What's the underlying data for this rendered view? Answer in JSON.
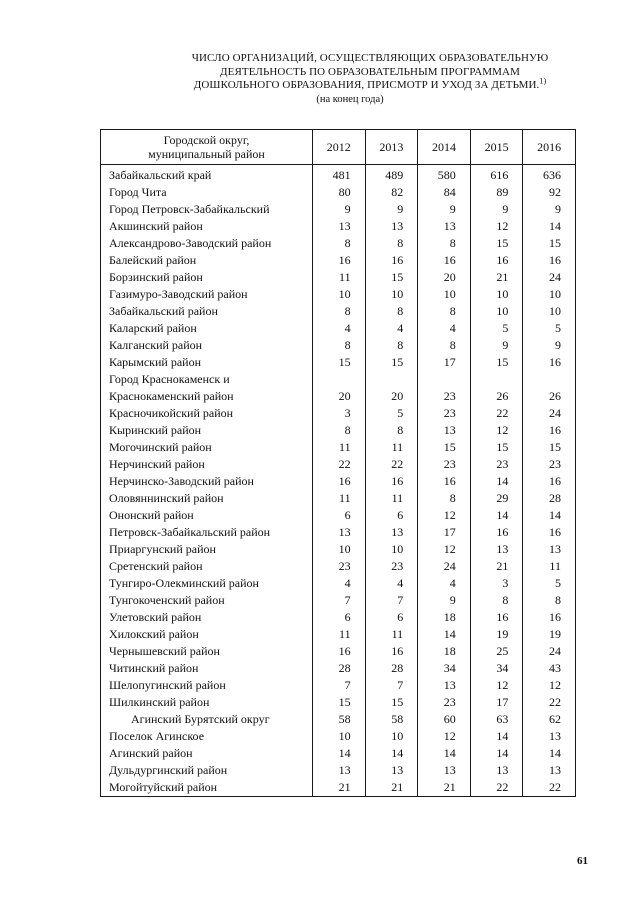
{
  "page": {
    "title_lines": [
      "ЧИСЛО ОРГАНИЗАЦИЙ, ОСУЩЕСТВЛЯЮЩИХ ОБРАЗОВАТЕЛЬНУЮ",
      "ДЕЯТЕЛЬНОСТЬ ПО ОБРАЗОВАТЕЛЬНЫМ ПРОГРАММАМ",
      "ДОШКОЛЬНОГО ОБРАЗОВАНИЯ, ПРИСМОТР И УХОД ЗА ДЕТЬМИ."
    ],
    "title_superscript": "1)",
    "subtitle": "(на конец года)",
    "page_number": "61"
  },
  "table": {
    "header": {
      "label_line1": "Городской округ,",
      "label_line2": "муниципальный район",
      "years": [
        "2012",
        "2013",
        "2014",
        "2015",
        "2016"
      ]
    },
    "rows": [
      {
        "label": "Забайкальский край",
        "indent": false,
        "values": [
          "481",
          "489",
          "580",
          "616",
          "636"
        ]
      },
      {
        "label": "Город Чита",
        "indent": false,
        "values": [
          "80",
          "82",
          "84",
          "89",
          "92"
        ]
      },
      {
        "label": "Город Петровск-Забайкальский",
        "indent": false,
        "values": [
          "9",
          "9",
          "9",
          "9",
          "9"
        ]
      },
      {
        "label": "Акшинский район",
        "indent": false,
        "values": [
          "13",
          "13",
          "13",
          "12",
          "14"
        ]
      },
      {
        "label": "Александрово-Заводский район",
        "indent": false,
        "values": [
          "8",
          "8",
          "8",
          "15",
          "15"
        ]
      },
      {
        "label": "Балейский район",
        "indent": false,
        "values": [
          "16",
          "16",
          "16",
          "16",
          "16"
        ]
      },
      {
        "label": "Борзинский район",
        "indent": false,
        "values": [
          "11",
          "15",
          "20",
          "21",
          "24"
        ]
      },
      {
        "label": "Газимуро-Заводский район",
        "indent": false,
        "values": [
          "10",
          "10",
          "10",
          "10",
          "10"
        ]
      },
      {
        "label": "Забайкальский район",
        "indent": false,
        "values": [
          "8",
          "8",
          "8",
          "10",
          "10"
        ]
      },
      {
        "label": "Каларский район",
        "indent": false,
        "values": [
          "4",
          "4",
          "4",
          "5",
          "5"
        ]
      },
      {
        "label": "Калганский район",
        "indent": false,
        "values": [
          "8",
          "8",
          "8",
          "9",
          "9"
        ]
      },
      {
        "label": "Карымский район",
        "indent": false,
        "values": [
          "15",
          "15",
          "17",
          "15",
          "16"
        ]
      },
      {
        "label": "Город Краснокаменск и",
        "indent": false,
        "values": [
          "",
          "",
          "",
          "",
          ""
        ]
      },
      {
        "label": "Краснокаменский район",
        "indent": false,
        "values": [
          "20",
          "20",
          "23",
          "26",
          "26"
        ]
      },
      {
        "label": "Красночикойский район",
        "indent": false,
        "values": [
          "3",
          "5",
          "23",
          "22",
          "24"
        ]
      },
      {
        "label": "Кыринский район",
        "indent": false,
        "values": [
          "8",
          "8",
          "13",
          "12",
          "16"
        ]
      },
      {
        "label": "Могочинский район",
        "indent": false,
        "values": [
          "11",
          "11",
          "15",
          "15",
          "15"
        ]
      },
      {
        "label": "Нерчинский район",
        "indent": false,
        "values": [
          "22",
          "22",
          "23",
          "23",
          "23"
        ]
      },
      {
        "label": "Нерчинско-Заводский район",
        "indent": false,
        "values": [
          "16",
          "16",
          "16",
          "14",
          "16"
        ]
      },
      {
        "label": "Оловяннинский район",
        "indent": false,
        "values": [
          "11",
          "11",
          "8",
          "29",
          "28"
        ]
      },
      {
        "label": "Ононский район",
        "indent": false,
        "values": [
          "6",
          "6",
          "12",
          "14",
          "14"
        ]
      },
      {
        "label": "Петровск-Забайкальский район",
        "indent": false,
        "values": [
          "13",
          "13",
          "17",
          "16",
          "16"
        ]
      },
      {
        "label": "Приаргунский район",
        "indent": false,
        "values": [
          "10",
          "10",
          "12",
          "13",
          "13"
        ]
      },
      {
        "label": "Сретенский район",
        "indent": false,
        "values": [
          "23",
          "23",
          "24",
          "21",
          "11"
        ]
      },
      {
        "label": "Тунгиро-Олекминский район",
        "indent": false,
        "values": [
          "4",
          "4",
          "4",
          "3",
          "5"
        ]
      },
      {
        "label": "Тунгокоченский район",
        "indent": false,
        "values": [
          "7",
          "7",
          "9",
          "8",
          "8"
        ]
      },
      {
        "label": "Улетовский район",
        "indent": false,
        "values": [
          "6",
          "6",
          "18",
          "16",
          "16"
        ]
      },
      {
        "label": "Хилокский район",
        "indent": false,
        "values": [
          "11",
          "11",
          "14",
          "19",
          "19"
        ]
      },
      {
        "label": "Чернышевский район",
        "indent": false,
        "values": [
          "16",
          "16",
          "18",
          "25",
          "24"
        ]
      },
      {
        "label": "Читинский район",
        "indent": false,
        "values": [
          "28",
          "28",
          "34",
          "34",
          "43"
        ]
      },
      {
        "label": "Шелопугинский район",
        "indent": false,
        "values": [
          "7",
          "7",
          "13",
          "12",
          "12"
        ]
      },
      {
        "label": "Шилкинский район",
        "indent": false,
        "values": [
          "15",
          "15",
          "23",
          "17",
          "22"
        ]
      },
      {
        "label": "Агинский Бурятский округ",
        "indent": true,
        "values": [
          "58",
          "58",
          "60",
          "63",
          "62"
        ]
      },
      {
        "label": "Поселок Агинское",
        "indent": false,
        "values": [
          "10",
          "10",
          "12",
          "14",
          "13"
        ]
      },
      {
        "label": "Агинский район",
        "indent": false,
        "values": [
          "14",
          "14",
          "14",
          "14",
          "14"
        ]
      },
      {
        "label": "Дульдургинский район",
        "indent": false,
        "values": [
          "13",
          "13",
          "13",
          "13",
          "13"
        ]
      },
      {
        "label": "Могойтуйский район",
        "indent": false,
        "values": [
          "21",
          "21",
          "21",
          "22",
          "22"
        ]
      }
    ]
  }
}
